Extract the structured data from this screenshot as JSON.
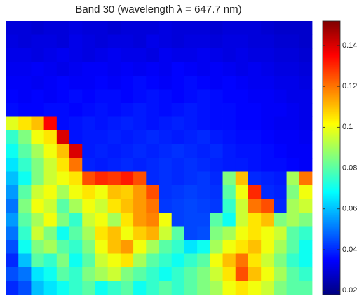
{
  "chart_data": {
    "type": "heatmap",
    "title": "Band 30 (wavelength λ = 647.7 nm)",
    "colormap": "jet",
    "clim": [
      0.018,
      0.152
    ],
    "cticks": [
      0.02,
      0.04,
      0.06,
      0.08,
      0.1,
      0.12,
      0.14
    ],
    "values": [
      [
        0.03,
        0.03,
        0.029,
        0.03,
        0.03,
        0.031,
        0.03,
        0.03,
        0.029,
        0.03,
        0.03,
        0.03,
        0.031,
        0.03,
        0.03,
        0.03,
        0.029,
        0.03,
        0.03,
        0.03,
        0.029,
        0.028,
        0.028,
        0.028
      ],
      [
        0.031,
        0.03,
        0.031,
        0.031,
        0.03,
        0.032,
        0.031,
        0.03,
        0.031,
        0.031,
        0.03,
        0.032,
        0.031,
        0.03,
        0.031,
        0.031,
        0.03,
        0.031,
        0.031,
        0.03,
        0.03,
        0.029,
        0.029,
        0.028
      ],
      [
        0.032,
        0.032,
        0.031,
        0.032,
        0.033,
        0.032,
        0.031,
        0.032,
        0.033,
        0.032,
        0.032,
        0.031,
        0.033,
        0.032,
        0.032,
        0.033,
        0.032,
        0.031,
        0.032,
        0.031,
        0.031,
        0.03,
        0.03,
        0.029
      ],
      [
        0.033,
        0.033,
        0.034,
        0.033,
        0.032,
        0.033,
        0.034,
        0.034,
        0.033,
        0.034,
        0.033,
        0.034,
        0.033,
        0.035,
        0.034,
        0.033,
        0.034,
        0.033,
        0.032,
        0.033,
        0.032,
        0.031,
        0.031,
        0.03
      ],
      [
        0.034,
        0.034,
        0.033,
        0.034,
        0.035,
        0.034,
        0.034,
        0.035,
        0.034,
        0.035,
        0.036,
        0.035,
        0.034,
        0.035,
        0.036,
        0.035,
        0.034,
        0.035,
        0.034,
        0.033,
        0.033,
        0.032,
        0.032,
        0.031
      ],
      [
        0.035,
        0.034,
        0.035,
        0.034,
        0.035,
        0.036,
        0.035,
        0.036,
        0.036,
        0.035,
        0.036,
        0.037,
        0.036,
        0.035,
        0.036,
        0.037,
        0.036,
        0.035,
        0.035,
        0.034,
        0.034,
        0.033,
        0.032,
        0.032
      ],
      [
        0.036,
        0.035,
        0.035,
        0.036,
        0.036,
        0.035,
        0.036,
        0.037,
        0.036,
        0.037,
        0.038,
        0.037,
        0.036,
        0.037,
        0.038,
        0.037,
        0.036,
        0.036,
        0.035,
        0.035,
        0.034,
        0.034,
        0.033,
        0.032
      ],
      [
        0.098,
        0.105,
        0.11,
        0.135,
        0.036,
        0.037,
        0.038,
        0.037,
        0.038,
        0.039,
        0.038,
        0.037,
        0.038,
        0.039,
        0.038,
        0.037,
        0.036,
        0.036,
        0.035,
        0.035,
        0.034,
        0.033,
        0.033,
        0.032
      ],
      [
        0.075,
        0.085,
        0.1,
        0.105,
        0.14,
        0.037,
        0.038,
        0.038,
        0.039,
        0.038,
        0.039,
        0.04,
        0.039,
        0.038,
        0.039,
        0.04,
        0.038,
        0.037,
        0.036,
        0.036,
        0.035,
        0.034,
        0.034,
        0.033
      ],
      [
        0.07,
        0.08,
        0.09,
        0.1,
        0.11,
        0.14,
        0.038,
        0.039,
        0.038,
        0.039,
        0.04,
        0.039,
        0.04,
        0.041,
        0.04,
        0.039,
        0.04,
        0.038,
        0.037,
        0.037,
        0.036,
        0.035,
        0.034,
        0.034
      ],
      [
        0.065,
        0.075,
        0.085,
        0.095,
        0.105,
        0.12,
        0.039,
        0.038,
        0.039,
        0.04,
        0.039,
        0.04,
        0.041,
        0.04,
        0.041,
        0.04,
        0.039,
        0.038,
        0.038,
        0.037,
        0.036,
        0.036,
        0.035,
        0.034
      ],
      [
        0.06,
        0.07,
        0.085,
        0.095,
        0.1,
        0.105,
        0.125,
        0.13,
        0.128,
        0.132,
        0.125,
        0.04,
        0.041,
        0.04,
        0.041,
        0.042,
        0.04,
        0.085,
        0.11,
        0.04,
        0.039,
        0.038,
        0.09,
        0.12
      ],
      [
        0.055,
        0.08,
        0.095,
        0.1,
        0.09,
        0.1,
        0.105,
        0.1,
        0.11,
        0.108,
        0.115,
        0.125,
        0.041,
        0.042,
        0.043,
        0.042,
        0.041,
        0.08,
        0.1,
        0.13,
        0.04,
        0.039,
        0.085,
        0.1
      ],
      [
        0.05,
        0.085,
        0.1,
        0.095,
        0.08,
        0.09,
        0.1,
        0.095,
        0.105,
        0.11,
        0.115,
        0.12,
        0.042,
        0.043,
        0.044,
        0.043,
        0.042,
        0.075,
        0.095,
        0.12,
        0.125,
        0.04,
        0.09,
        0.095
      ],
      [
        0.055,
        0.08,
        0.09,
        0.1,
        0.085,
        0.075,
        0.095,
        0.1,
        0.09,
        0.105,
        0.115,
        0.118,
        0.1,
        0.043,
        0.044,
        0.044,
        0.08,
        0.07,
        0.095,
        0.105,
        0.11,
        0.085,
        0.09,
        0.085
      ],
      [
        0.05,
        0.075,
        0.095,
        0.085,
        0.07,
        0.08,
        0.09,
        0.105,
        0.11,
        0.1,
        0.108,
        0.112,
        0.095,
        0.08,
        0.044,
        0.045,
        0.085,
        0.09,
        0.1,
        0.105,
        0.1,
        0.095,
        0.08,
        0.075
      ],
      [
        0.045,
        0.07,
        0.085,
        0.09,
        0.08,
        0.075,
        0.085,
        0.1,
        0.11,
        0.115,
        0.1,
        0.09,
        0.08,
        0.075,
        0.065,
        0.07,
        0.09,
        0.1,
        0.105,
        0.11,
        0.1,
        0.09,
        0.08,
        0.07
      ],
      [
        0.04,
        0.06,
        0.08,
        0.075,
        0.085,
        0.07,
        0.08,
        0.095,
        0.1,
        0.105,
        0.09,
        0.08,
        0.075,
        0.07,
        0.075,
        0.08,
        0.1,
        0.11,
        0.12,
        0.105,
        0.095,
        0.085,
        0.075,
        0.07
      ],
      [
        0.045,
        0.05,
        0.065,
        0.07,
        0.08,
        0.075,
        0.085,
        0.09,
        0.095,
        0.085,
        0.08,
        0.075,
        0.07,
        0.075,
        0.08,
        0.085,
        0.095,
        0.105,
        0.125,
        0.11,
        0.1,
        0.09,
        0.08,
        0.075
      ],
      [
        0.04,
        0.045,
        0.06,
        0.065,
        0.07,
        0.075,
        0.08,
        0.07,
        0.075,
        0.08,
        0.07,
        0.075,
        0.08,
        0.075,
        0.08,
        0.085,
        0.09,
        0.1,
        0.105,
        0.1,
        0.095,
        0.085,
        0.08,
        0.08
      ]
    ]
  }
}
